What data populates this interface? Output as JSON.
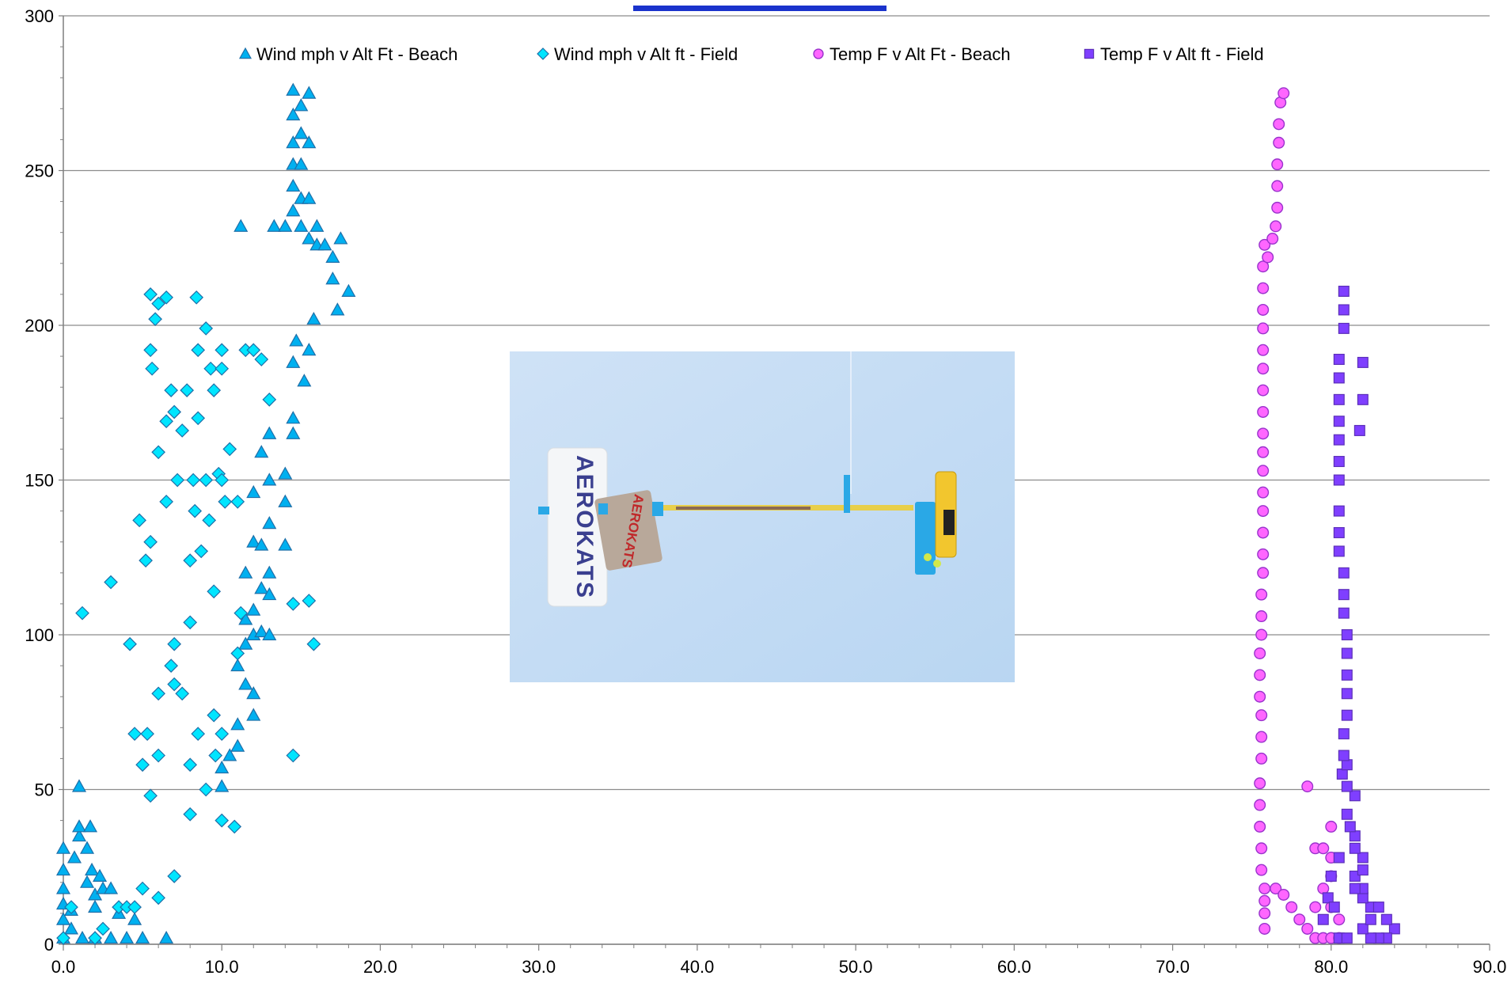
{
  "chart_data": {
    "type": "scatter",
    "title": "",
    "xlabel": "",
    "ylabel": "",
    "xlim": [
      0,
      90
    ],
    "ylim": [
      0,
      300
    ],
    "x_ticks": [
      "0.0",
      "10.0",
      "20.0",
      "30.0",
      "40.0",
      "50.0",
      "60.0",
      "70.0",
      "80.0",
      "90.0"
    ],
    "y_ticks": [
      "0",
      "50",
      "100",
      "150",
      "200",
      "250",
      "300"
    ],
    "grid": "horizontal",
    "legend_position": "top",
    "photo_brand_text": "AEROKATS",
    "series": [
      {
        "name": "Wind mph v Alt Ft - Beach",
        "marker": "triangle",
        "color": "#00b0f0",
        "stroke": "#1f6fa8",
        "points": [
          [
            0,
            2
          ],
          [
            0,
            8
          ],
          [
            0,
            13
          ],
          [
            0,
            18
          ],
          [
            0,
            24
          ],
          [
            0,
            31
          ],
          [
            0.5,
            5
          ],
          [
            0.5,
            11
          ],
          [
            0.7,
            28
          ],
          [
            1,
            35
          ],
          [
            1,
            38
          ],
          [
            1,
            51
          ],
          [
            1.2,
            2
          ],
          [
            1.5,
            20
          ],
          [
            1.5,
            31
          ],
          [
            1.7,
            38
          ],
          [
            1.8,
            24
          ],
          [
            2,
            12
          ],
          [
            2,
            16
          ],
          [
            2,
            2
          ],
          [
            2.3,
            22
          ],
          [
            2.5,
            18
          ],
          [
            3,
            18
          ],
          [
            3,
            2
          ],
          [
            3.5,
            10
          ],
          [
            4,
            2
          ],
          [
            4.5,
            8
          ],
          [
            5,
            2
          ],
          [
            6.5,
            2
          ],
          [
            10,
            51
          ],
          [
            10,
            57
          ],
          [
            10.5,
            61
          ],
          [
            11,
            64
          ],
          [
            11,
            71
          ],
          [
            11,
            90
          ],
          [
            11.2,
            232
          ],
          [
            11.5,
            84
          ],
          [
            11.5,
            97
          ],
          [
            11.5,
            105
          ],
          [
            11.5,
            120
          ],
          [
            12,
            74
          ],
          [
            12,
            81
          ],
          [
            12,
            100
          ],
          [
            12,
            108
          ],
          [
            12,
            130
          ],
          [
            12,
            146
          ],
          [
            12.5,
            101
          ],
          [
            12.5,
            115
          ],
          [
            12.5,
            129
          ],
          [
            12.5,
            159
          ],
          [
            13,
            100
          ],
          [
            13,
            113
          ],
          [
            13,
            120
          ],
          [
            13,
            136
          ],
          [
            13,
            150
          ],
          [
            13,
            165
          ],
          [
            13.3,
            232
          ],
          [
            14,
            129
          ],
          [
            14,
            143
          ],
          [
            14,
            152
          ],
          [
            14,
            232
          ],
          [
            14.5,
            165
          ],
          [
            14.5,
            170
          ],
          [
            14.5,
            188
          ],
          [
            14.5,
            237
          ],
          [
            14.5,
            245
          ],
          [
            14.5,
            252
          ],
          [
            14.5,
            259
          ],
          [
            14.5,
            268
          ],
          [
            14.5,
            276
          ],
          [
            14.7,
            195
          ],
          [
            15,
            232
          ],
          [
            15,
            241
          ],
          [
            15,
            252
          ],
          [
            15,
            262
          ],
          [
            15,
            271
          ],
          [
            15.2,
            182
          ],
          [
            15.5,
            192
          ],
          [
            15.5,
            228
          ],
          [
            15.5,
            241
          ],
          [
            15.5,
            259
          ],
          [
            15.5,
            275
          ],
          [
            15.8,
            202
          ],
          [
            16,
            226
          ],
          [
            16,
            232
          ],
          [
            16.5,
            226
          ],
          [
            17,
            215
          ],
          [
            17,
            222
          ],
          [
            17.3,
            205
          ],
          [
            17.5,
            228
          ],
          [
            18,
            211
          ]
        ]
      },
      {
        "name": "Wind mph v Alt ft - Field",
        "marker": "diamond",
        "color": "#00e5ff",
        "stroke": "#1f6fa8",
        "points": [
          [
            0,
            2
          ],
          [
            0.5,
            12
          ],
          [
            1.2,
            107
          ],
          [
            2,
            2
          ],
          [
            2.5,
            5
          ],
          [
            3,
            117
          ],
          [
            3.5,
            12
          ],
          [
            4,
            12
          ],
          [
            4.2,
            97
          ],
          [
            4.5,
            12
          ],
          [
            4.5,
            68
          ],
          [
            4.8,
            137
          ],
          [
            5,
            58
          ],
          [
            5,
            18
          ],
          [
            5.2,
            124
          ],
          [
            5.3,
            68
          ],
          [
            5.5,
            48
          ],
          [
            5.5,
            130
          ],
          [
            5.5,
            192
          ],
          [
            5.5,
            210
          ],
          [
            5.6,
            186
          ],
          [
            5.8,
            202
          ],
          [
            6,
            15
          ],
          [
            6,
            61
          ],
          [
            6,
            81
          ],
          [
            6,
            159
          ],
          [
            6,
            207
          ],
          [
            6.5,
            143
          ],
          [
            6.5,
            169
          ],
          [
            6.5,
            209
          ],
          [
            6.8,
            90
          ],
          [
            6.8,
            179
          ],
          [
            7,
            22
          ],
          [
            7,
            84
          ],
          [
            7,
            97
          ],
          [
            7,
            172
          ],
          [
            7.2,
            150
          ],
          [
            7.5,
            81
          ],
          [
            7.5,
            166
          ],
          [
            7.8,
            179
          ],
          [
            8,
            58
          ],
          [
            8,
            42
          ],
          [
            8,
            104
          ],
          [
            8,
            124
          ],
          [
            8.2,
            150
          ],
          [
            8.3,
            140
          ],
          [
            8.4,
            209
          ],
          [
            8.5,
            68
          ],
          [
            8.5,
            170
          ],
          [
            8.5,
            192
          ],
          [
            8.7,
            127
          ],
          [
            9,
            50
          ],
          [
            9,
            150
          ],
          [
            9,
            199
          ],
          [
            9.2,
            137
          ],
          [
            9.3,
            186
          ],
          [
            9.5,
            114
          ],
          [
            9.5,
            179
          ],
          [
            9.5,
            74
          ],
          [
            9.6,
            61
          ],
          [
            9.8,
            152
          ],
          [
            10,
            40
          ],
          [
            10,
            68
          ],
          [
            10,
            150
          ],
          [
            10,
            192
          ],
          [
            10,
            186
          ],
          [
            10.2,
            143
          ],
          [
            10.5,
            160
          ],
          [
            10.8,
            38
          ],
          [
            11,
            94
          ],
          [
            11,
            143
          ],
          [
            11.2,
            107
          ],
          [
            11.5,
            192
          ],
          [
            12,
            192
          ],
          [
            12.5,
            189
          ],
          [
            13,
            176
          ],
          [
            14.5,
            61
          ],
          [
            14.5,
            110
          ],
          [
            15.5,
            111
          ],
          [
            15.8,
            97
          ]
        ]
      },
      {
        "name": "Temp F v Alt Ft - Beach",
        "marker": "circle",
        "color": "#ff66ff",
        "stroke": "#9933cc",
        "points": [
          [
            75.8,
            5
          ],
          [
            75.8,
            10
          ],
          [
            75.8,
            14
          ],
          [
            75.8,
            18
          ],
          [
            75.6,
            24
          ],
          [
            75.6,
            31
          ],
          [
            75.5,
            38
          ],
          [
            75.5,
            45
          ],
          [
            75.5,
            52
          ],
          [
            75.6,
            60
          ],
          [
            75.6,
            67
          ],
          [
            75.6,
            74
          ],
          [
            75.5,
            80
          ],
          [
            75.5,
            87
          ],
          [
            75.5,
            94
          ],
          [
            75.6,
            100
          ],
          [
            75.6,
            106
          ],
          [
            75.6,
            113
          ],
          [
            75.7,
            120
          ],
          [
            75.7,
            126
          ],
          [
            75.7,
            133
          ],
          [
            75.7,
            140
          ],
          [
            75.7,
            146
          ],
          [
            75.7,
            153
          ],
          [
            75.7,
            159
          ],
          [
            75.7,
            165
          ],
          [
            75.7,
            172
          ],
          [
            75.7,
            179
          ],
          [
            75.7,
            186
          ],
          [
            75.7,
            192
          ],
          [
            75.7,
            199
          ],
          [
            75.7,
            205
          ],
          [
            75.7,
            212
          ],
          [
            75.7,
            219
          ],
          [
            75.8,
            226
          ],
          [
            76,
            222
          ],
          [
            76.3,
            228
          ],
          [
            76.5,
            232
          ],
          [
            76.6,
            238
          ],
          [
            76.6,
            245
          ],
          [
            76.6,
            252
          ],
          [
            76.7,
            259
          ],
          [
            76.7,
            265
          ],
          [
            76.8,
            272
          ],
          [
            77,
            275
          ],
          [
            76.5,
            18
          ],
          [
            77,
            16
          ],
          [
            77.5,
            12
          ],
          [
            78,
            8
          ],
          [
            78.5,
            5
          ],
          [
            79,
            2
          ],
          [
            79.5,
            2
          ],
          [
            80,
            2
          ],
          [
            80.5,
            2
          ],
          [
            79,
            12
          ],
          [
            79.5,
            18
          ],
          [
            80,
            22
          ],
          [
            79,
            31
          ],
          [
            79.5,
            31
          ],
          [
            80,
            28
          ],
          [
            80,
            38
          ],
          [
            78.5,
            51
          ],
          [
            80,
            12
          ],
          [
            80.5,
            8
          ]
        ]
      },
      {
        "name": "Temp F v Alt ft - Field",
        "marker": "square",
        "color": "#7f3fff",
        "stroke": "#5b2fb8",
        "points": [
          [
            84,
            5
          ],
          [
            83.5,
            8
          ],
          [
            83.5,
            2
          ],
          [
            83,
            2
          ],
          [
            82.5,
            2
          ],
          [
            82,
            5
          ],
          [
            82.5,
            12
          ],
          [
            83,
            12
          ],
          [
            82,
            15
          ],
          [
            82,
            18
          ],
          [
            81.5,
            22
          ],
          [
            82,
            24
          ],
          [
            82,
            28
          ],
          [
            81.5,
            31
          ],
          [
            81.5,
            35
          ],
          [
            81.2,
            38
          ],
          [
            81,
            42
          ],
          [
            81.5,
            48
          ],
          [
            81,
            51
          ],
          [
            80.7,
            55
          ],
          [
            81,
            58
          ],
          [
            80.8,
            61
          ],
          [
            80.8,
            68
          ],
          [
            81,
            74
          ],
          [
            81,
            81
          ],
          [
            81,
            87
          ],
          [
            81,
            94
          ],
          [
            81,
            100
          ],
          [
            80.8,
            107
          ],
          [
            80.8,
            113
          ],
          [
            80.8,
            120
          ],
          [
            80.5,
            127
          ],
          [
            80.5,
            133
          ],
          [
            80.5,
            140
          ],
          [
            80.5,
            150
          ],
          [
            80.5,
            156
          ],
          [
            80.5,
            163
          ],
          [
            80.5,
            169
          ],
          [
            80.5,
            176
          ],
          [
            80.5,
            183
          ],
          [
            80.5,
            189
          ],
          [
            80.8,
            199
          ],
          [
            80.8,
            205
          ],
          [
            80.8,
            211
          ],
          [
            79.8,
            15
          ],
          [
            80.2,
            12
          ],
          [
            79.5,
            8
          ],
          [
            80.5,
            2
          ],
          [
            81,
            2
          ],
          [
            80,
            22
          ],
          [
            80.5,
            28
          ],
          [
            82.5,
            8
          ],
          [
            81.5,
            18
          ],
          [
            82,
            188
          ],
          [
            81.8,
            166
          ],
          [
            82,
            176
          ]
        ]
      }
    ]
  }
}
